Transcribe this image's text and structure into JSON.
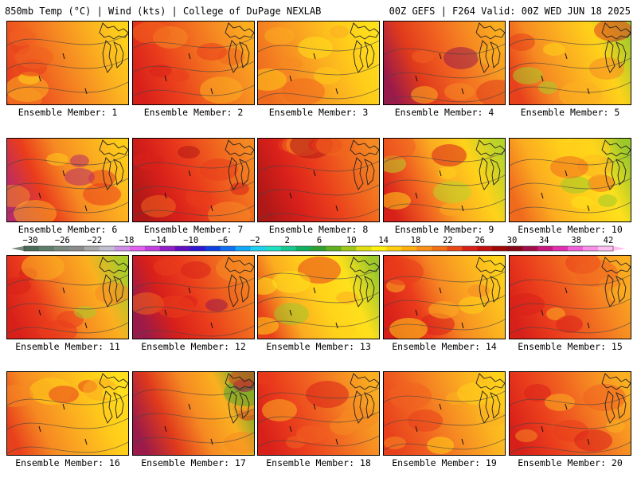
{
  "header": {
    "left_title": "850mb Temp (°C) | Wind (kts) | College of DuPage NEXLAB",
    "right_title": "00Z GEFS | F264 Valid: 00Z WED JUN 18 2025"
  },
  "members": [
    {
      "label": "Ensemble Member: 1",
      "theme": [
        "#e8401c",
        "#f06020",
        "#f68a22",
        "#fbb020",
        "#ffd21a"
      ]
    },
    {
      "label": "Ensemble Member: 2",
      "theme": [
        "#d8201a",
        "#ea3c1c",
        "#f0641e",
        "#f68a22",
        "#fbae20"
      ]
    },
    {
      "label": "Ensemble Member: 3",
      "theme": [
        "#f06a1e",
        "#f68a22",
        "#fbac20",
        "#ffcc1a",
        "#ffe01c"
      ]
    },
    {
      "label": "Ensemble Member: 4",
      "theme": [
        "#9a1a4a",
        "#e03a1c",
        "#f06020",
        "#f68a22",
        "#fbae20"
      ]
    },
    {
      "label": "Ensemble Member: 5",
      "theme": [
        "#e8401c",
        "#f68a22",
        "#fbb020",
        "#ffd21a",
        "#a8cc2a"
      ]
    },
    {
      "label": "Ensemble Member: 6",
      "theme": [
        "#b82a6a",
        "#ea3c1c",
        "#f68a22",
        "#fbac20",
        "#ffcc1a"
      ]
    },
    {
      "label": "Ensemble Member: 7",
      "theme": [
        "#b01818",
        "#d8201a",
        "#ea3c1c",
        "#f0641e",
        "#f68a22"
      ]
    },
    {
      "label": "Ensemble Member: 8",
      "theme": [
        "#b01818",
        "#d8201a",
        "#ea3c1c",
        "#f0641e",
        "#f68a22"
      ]
    },
    {
      "label": "Ensemble Member: 9",
      "theme": [
        "#d8201a",
        "#f06020",
        "#fbac20",
        "#ffd21a",
        "#b8d42a"
      ]
    },
    {
      "label": "Ensemble Member: 10",
      "theme": [
        "#f06a1e",
        "#fbac20",
        "#ffcc1a",
        "#ffe01c",
        "#9cc82a"
      ]
    },
    {
      "label": "Ensemble Member: 11",
      "theme": [
        "#d8201a",
        "#ea3c1c",
        "#f68a22",
        "#fbb020",
        "#a8cc2a"
      ]
    },
    {
      "label": "Ensemble Member: 12",
      "theme": [
        "#9a1a4a",
        "#d8201a",
        "#ea3c1c",
        "#f0641e",
        "#f68a22"
      ]
    },
    {
      "label": "Ensemble Member: 13",
      "theme": [
        "#e8401c",
        "#fbac20",
        "#ffd21a",
        "#ffe01c",
        "#9cc82a"
      ]
    },
    {
      "label": "Ensemble Member: 14",
      "theme": [
        "#d8201a",
        "#ea3c1c",
        "#f68a22",
        "#fbb020",
        "#ffd21a"
      ]
    },
    {
      "label": "Ensemble Member: 15",
      "theme": [
        "#d8201a",
        "#ea3c1c",
        "#f06020",
        "#f68a22",
        "#fbae20"
      ]
    },
    {
      "label": "Ensemble Member: 16",
      "theme": [
        "#e8401c",
        "#f68a22",
        "#fbac20",
        "#ffcc1a",
        "#ffe01c"
      ]
    },
    {
      "label": "Ensemble Member: 17",
      "theme": [
        "#9a1a4a",
        "#e03a1c",
        "#f68a22",
        "#fbb020",
        "#5aa82a"
      ]
    },
    {
      "label": "Ensemble Member: 18",
      "theme": [
        "#d8201a",
        "#ea3c1c",
        "#f06020",
        "#f68a22",
        "#fbae20"
      ]
    },
    {
      "label": "Ensemble Member: 19",
      "theme": [
        "#e8401c",
        "#f06020",
        "#f68a22",
        "#fbb020",
        "#ffd21a"
      ]
    },
    {
      "label": "Ensemble Member: 20",
      "theme": [
        "#d8201a",
        "#ea3c1c",
        "#f06020",
        "#f68a22",
        "#fbb020"
      ]
    }
  ],
  "colorbar": {
    "labels": [
      "−30",
      "−26",
      "−22",
      "−18",
      "−14",
      "−10",
      "−6",
      "−2",
      "2",
      "6",
      "10",
      "14",
      "18",
      "22",
      "26",
      "30",
      "34",
      "38",
      "42"
    ],
    "colors": [
      "#4a6b58",
      "#5f7e6a",
      "#7a8a80",
      "#8c8c8c",
      "#a9a9a9",
      "#c0c0d0",
      "#d090e8",
      "#e060f0",
      "#c040e0",
      "#9020c8",
      "#6010c0",
      "#3018d0",
      "#1040e0",
      "#1070f0",
      "#10a8f8",
      "#20d0f0",
      "#20e0c0",
      "#18c890",
      "#10b060",
      "#30a030",
      "#60b020",
      "#a0c818",
      "#e0e010",
      "#fff010",
      "#ffd010",
      "#ffb010",
      "#fb9018",
      "#f07018",
      "#e84818",
      "#d82018",
      "#c01010",
      "#a00808",
      "#880818",
      "#a01048",
      "#c81880",
      "#e030b0",
      "#f060d8",
      "#f890e8",
      "#ffc0f0"
    ],
    "left_arrow": "#7a8a80",
    "right_arrow": "#ffc0f0"
  }
}
